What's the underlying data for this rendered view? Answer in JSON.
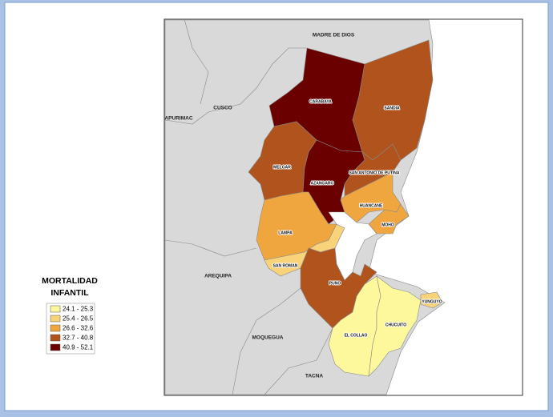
{
  "legend": {
    "title": [
      "MORTALIDAD",
      "INFANTIL"
    ],
    "items": [
      "24.1 - 25.3",
      "25.4 - 26.5",
      "26.6 - 32.6",
      "32.7 - 40.8",
      "40.9 - 52.1"
    ]
  },
  "neighbors": [
    "MADRE DE DIOS",
    "CUSCO",
    "APURIMAC",
    "AREQUIPA",
    "MOQUEGUA",
    "TACNA"
  ],
  "provinces": [
    "CARABAYA",
    "SANDIA",
    "MELGAR",
    "AZANGARO",
    "SAN ANTONIO DE PUTINA",
    "HUANCANE",
    "MOHO",
    "LAMPA",
    "SAN ROMAN",
    "PUNO",
    "EL COLLAO",
    "CHUCUITO",
    "YUNGUYO"
  ]
}
